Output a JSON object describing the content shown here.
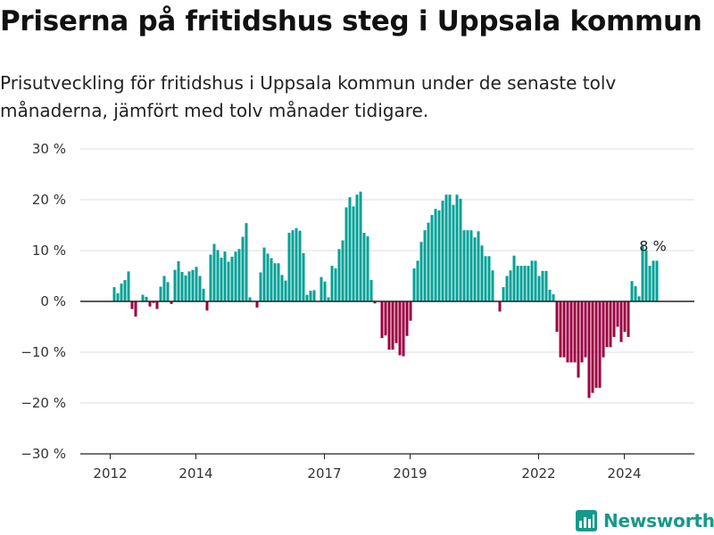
{
  "title": "Priserna på fritidshus steg i Uppsala kommun",
  "subtitle": "Prisutveckling för fritidshus i Uppsala kommun under de senaste tolv månaderna, jämfört med tolv månader tidigare.",
  "brand": {
    "name": "Newsworthy",
    "icon": "bar-chart-logo-icon",
    "color": "#16998a"
  },
  "colors": {
    "positive": "#00a197",
    "negative": "#9c0042",
    "zero_line": "#222222",
    "grid": "#dddddd"
  },
  "chart_data": {
    "type": "bar",
    "title": "Priserna på fritidshus steg i Uppsala kommun",
    "subtitle": "Prisutveckling för fritidshus i Uppsala kommun under de senaste tolv månaderna, jämfört med tolv månader tidigare.",
    "xlabel": "",
    "ylabel": "",
    "unit": "%",
    "ylim": [
      -30,
      30
    ],
    "y_ticks": [
      {
        "value": 30,
        "label": "30 %"
      },
      {
        "value": 20,
        "label": "20 %"
      },
      {
        "value": 10,
        "label": "10 %"
      },
      {
        "value": 0,
        "label": "0 %"
      },
      {
        "value": -10,
        "label": "−10 %"
      },
      {
        "value": -20,
        "label": "−20 %"
      },
      {
        "value": -30,
        "label": "−30 %"
      }
    ],
    "x_ticks": [
      {
        "label": "2012",
        "index": 0
      },
      {
        "label": "2014",
        "index": 24
      },
      {
        "label": "2017",
        "index": 60
      },
      {
        "label": "2019",
        "index": 84
      },
      {
        "label": "2022",
        "index": 120
      },
      {
        "label": "2024",
        "index": 144
      }
    ],
    "grid": true,
    "annotation": {
      "label": "8 %",
      "index": 155,
      "value": 8
    },
    "frequency": "monthly",
    "values": [
      0,
      2.8,
      1.6,
      3.5,
      4.2,
      5.9,
      -1.5,
      -3,
      0,
      1.3,
      0.9,
      -1,
      -0.3,
      -1.5,
      2.9,
      5,
      3.8,
      -0.5,
      6.2,
      7.9,
      5.8,
      5.1,
      5.9,
      6.2,
      6.8,
      5,
      2.5,
      -1.8,
      9.2,
      11.3,
      10.1,
      8.6,
      9.8,
      7.8,
      8.8,
      9.8,
      10.3,
      12.7,
      15.4,
      0.8,
      0,
      -1.2,
      5.7,
      10.6,
      9.4,
      8.5,
      7.5,
      7.5,
      5.2,
      4.1,
      13.5,
      14,
      14.4,
      13.9,
      9.5,
      1.3,
      2.1,
      2.2,
      0,
      4.8,
      3.9,
      0.8,
      7,
      6.5,
      10.3,
      12,
      18.5,
      20.5,
      18.7,
      21,
      21.6,
      13.5,
      12.8,
      4.2,
      -0.4,
      0,
      -7.2,
      -6.7,
      -9.5,
      -9.5,
      -8.2,
      -10.6,
      -10.8,
      -6.8,
      -3.8,
      6.5,
      8,
      11.7,
      14,
      15.5,
      17,
      18.2,
      17.9,
      19.8,
      21,
      21,
      19,
      21,
      20.2,
      14,
      14,
      14,
      12.6,
      13.8,
      11,
      8.9,
      8.9,
      6.1,
      0,
      -2,
      2.8,
      5,
      6.1,
      9,
      7,
      7,
      7,
      7,
      8,
      8,
      5,
      6,
      6,
      2.3,
      1.4,
      -6,
      -11,
      -11,
      -12,
      -12,
      -12,
      -15,
      -12,
      -11,
      -19,
      -18,
      -17,
      -17,
      -11,
      -9,
      -9,
      -7,
      -5,
      -8,
      -6,
      -7,
      4,
      3,
      1,
      11,
      10,
      7,
      8,
      8
    ]
  }
}
